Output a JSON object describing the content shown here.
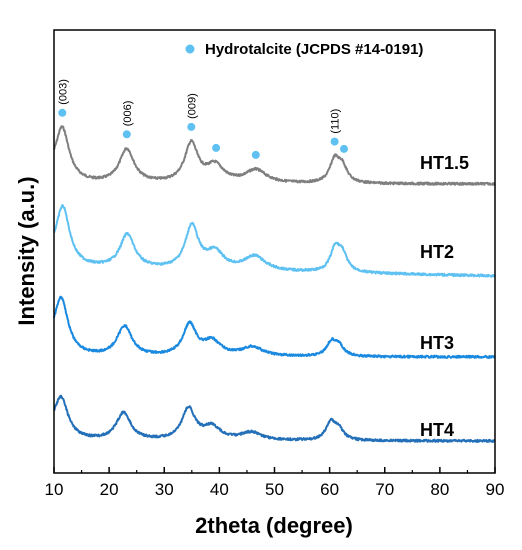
{
  "chart_data": {
    "type": "line",
    "title": "",
    "xlabel": "2theta (degree)",
    "ylabel": "Intensity (a.u.)",
    "xlim": [
      10,
      90
    ],
    "x_ticks": [
      10,
      20,
      30,
      40,
      50,
      60,
      70,
      80,
      90
    ],
    "y_ticks_shown": false,
    "legend": {
      "label": "Hydrotalcite  (JCPDS #14-0191)",
      "marker": "circle",
      "color": "#5ec1f2",
      "position": "top-right"
    },
    "reflections": [
      {
        "x": 11.5,
        "series": "HT1.5",
        "label": "(003)"
      },
      {
        "x": 23.2,
        "series": "HT1.5",
        "label": "(006)"
      },
      {
        "x": 34.9,
        "series": "HT1.5",
        "label": "(009)"
      },
      {
        "x": 39.4,
        "series": "HT1.5",
        "label": ""
      },
      {
        "x": 46.6,
        "series": "HT1.5",
        "label": ""
      },
      {
        "x": 60.9,
        "series": "HT1.5",
        "label": "(110)"
      },
      {
        "x": 62.6,
        "series": "HT1.5",
        "label": ""
      }
    ],
    "series": [
      {
        "name": "HT1.5",
        "color": "#7f7f7f",
        "baseline": 0.4,
        "peaks": [
          {
            "x": 11.5,
            "height": 0.4
          },
          {
            "x": 23.2,
            "height": 0.26
          },
          {
            "x": 34.9,
            "height": 0.3
          },
          {
            "x": 39.2,
            "height": 0.13
          },
          {
            "x": 46.6,
            "height": 0.1
          },
          {
            "x": 60.9,
            "height": 0.17
          },
          {
            "x": 62.3,
            "height": 0.12
          }
        ]
      },
      {
        "name": "HT2",
        "color": "#5ec1f2",
        "baseline": 0.38,
        "peaks": [
          {
            "x": 11.6,
            "height": 0.44
          },
          {
            "x": 23.3,
            "height": 0.26
          },
          {
            "x": 35.0,
            "height": 0.33
          },
          {
            "x": 39.2,
            "height": 0.13
          },
          {
            "x": 46.4,
            "height": 0.11
          },
          {
            "x": 61.0,
            "height": 0.17
          },
          {
            "x": 62.3,
            "height": 0.13
          }
        ]
      },
      {
        "name": "HT3",
        "color": "#1a89e0",
        "baseline": 0.37,
        "peaks": [
          {
            "x": 11.3,
            "height": 0.42
          },
          {
            "x": 22.8,
            "height": 0.23
          },
          {
            "x": 34.6,
            "height": 0.24
          },
          {
            "x": 38.7,
            "height": 0.11
          },
          {
            "x": 46.0,
            "height": 0.07
          },
          {
            "x": 60.3,
            "height": 0.1
          },
          {
            "x": 61.6,
            "height": 0.08
          }
        ]
      },
      {
        "name": "HT4",
        "color": "#2470b8",
        "baseline": 0.36,
        "peaks": [
          {
            "x": 11.3,
            "height": 0.3
          },
          {
            "x": 22.6,
            "height": 0.21
          },
          {
            "x": 34.4,
            "height": 0.24
          },
          {
            "x": 38.6,
            "height": 0.1
          },
          {
            "x": 45.8,
            "height": 0.06
          },
          {
            "x": 60.2,
            "height": 0.13
          },
          {
            "x": 61.6,
            "height": 0.08
          }
        ]
      }
    ]
  }
}
